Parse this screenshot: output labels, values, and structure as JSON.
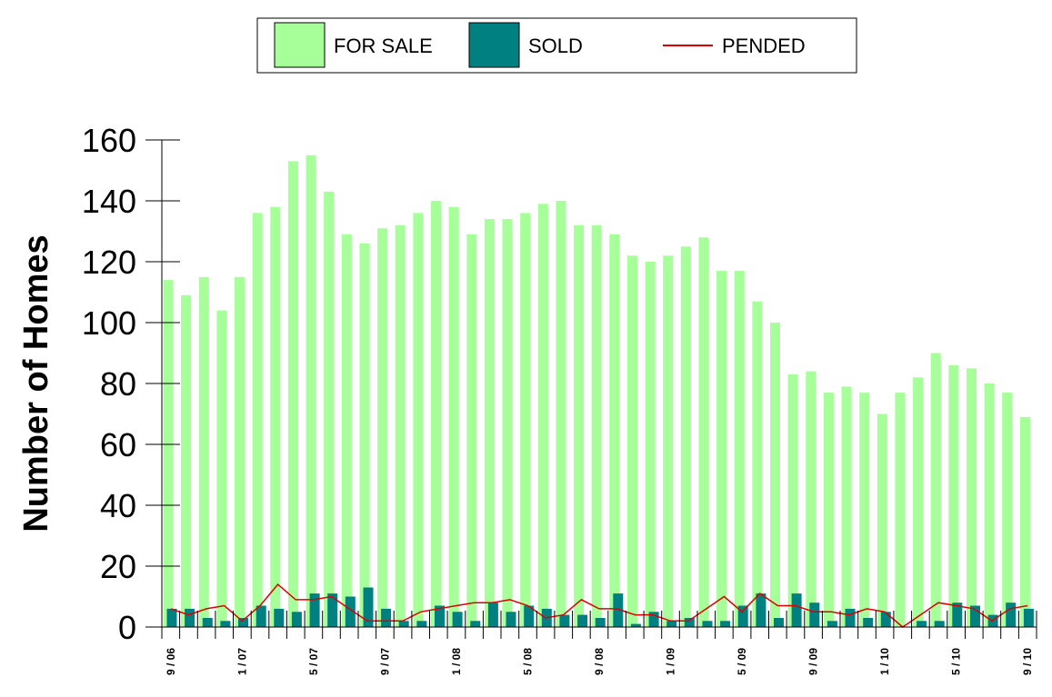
{
  "chart_data": {
    "type": "bar",
    "ylabel": "Number of Homes",
    "ylim": [
      0,
      160
    ],
    "yticks": [
      0,
      20,
      40,
      60,
      80,
      100,
      120,
      140,
      160
    ],
    "legend": {
      "placement": "top-center",
      "entries": [
        "FOR SALE",
        "SOLD",
        "PENDED"
      ]
    },
    "colors": {
      "for_sale": "#a6ff99",
      "sold": "#008080",
      "pended": "#e00000"
    },
    "x_tick_labels": [
      {
        "index": 0,
        "label": "9 / 06"
      },
      {
        "index": 4,
        "label": "1 / 07"
      },
      {
        "index": 8,
        "label": "5 / 07"
      },
      {
        "index": 12,
        "label": "9 / 07"
      },
      {
        "index": 16,
        "label": "1 / 08"
      },
      {
        "index": 20,
        "label": "5 / 08"
      },
      {
        "index": 24,
        "label": "9 / 08"
      },
      {
        "index": 28,
        "label": "1 / 09"
      },
      {
        "index": 32,
        "label": "5 / 09"
      },
      {
        "index": 36,
        "label": "9 / 09"
      },
      {
        "index": 40,
        "label": "1 / 10"
      },
      {
        "index": 44,
        "label": "5 / 10"
      },
      {
        "index": 48,
        "label": "9 / 10"
      }
    ],
    "series": [
      {
        "name": "FOR SALE",
        "type": "bar",
        "values": [
          114,
          109,
          115,
          104,
          115,
          136,
          138,
          153,
          155,
          143,
          129,
          126,
          131,
          132,
          136,
          140,
          138,
          129,
          134,
          134,
          136,
          139,
          140,
          132,
          132,
          129,
          122,
          120,
          122,
          125,
          128,
          117,
          117,
          107,
          100,
          83,
          84,
          77,
          79,
          77,
          70,
          77,
          82,
          90,
          86,
          85,
          80,
          77,
          69
        ]
      },
      {
        "name": "SOLD",
        "type": "bar",
        "values": [
          6,
          6,
          3,
          2,
          3,
          7,
          6,
          5,
          11,
          11,
          10,
          13,
          6,
          2,
          2,
          7,
          5,
          2,
          8,
          5,
          7,
          6,
          4,
          4,
          3,
          11,
          1,
          5,
          2,
          3,
          2,
          2,
          7,
          11,
          3,
          11,
          8,
          2,
          6,
          3,
          5,
          0,
          2,
          2,
          8,
          7,
          4,
          8,
          6
        ]
      },
      {
        "name": "PENDED",
        "type": "line",
        "values": [
          6,
          4,
          6,
          7,
          2,
          7,
          14,
          9,
          9,
          10,
          6,
          2,
          2,
          2,
          5,
          6,
          7,
          8,
          8,
          9,
          7,
          3,
          4,
          9,
          6,
          6,
          4,
          4,
          2,
          2,
          6,
          10,
          5,
          11,
          7,
          7,
          5,
          5,
          4,
          6,
          5,
          0,
          4,
          8,
          7,
          6,
          2,
          6,
          7
        ]
      }
    ]
  }
}
